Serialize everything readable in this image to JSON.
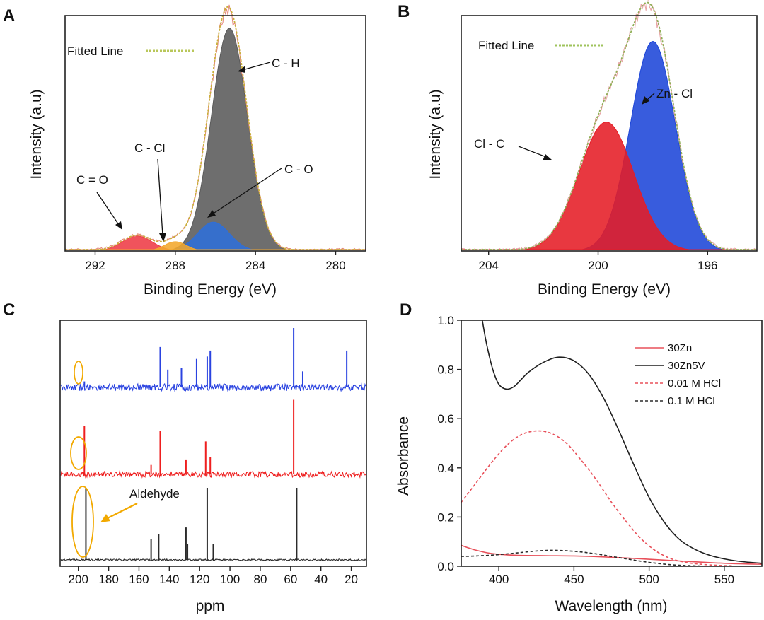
{
  "figure": {
    "panels": [
      "A",
      "B",
      "C",
      "D"
    ]
  },
  "chart_data": [
    {
      "panel": "A",
      "type": "line",
      "title": "",
      "xlabel": "Binding Energy (eV)",
      "ylabel": "Intensity (a.u)",
      "xlim": [
        293.5,
        278.5
      ],
      "xticks": [
        292,
        288,
        284,
        280
      ],
      "xtick_labels": [
        "292",
        "288",
        "284",
        "280"
      ],
      "ylim": [
        0,
        1.02
      ],
      "peaks": [
        {
          "name": "C = O",
          "center": 289.9,
          "sigma": 0.75,
          "height": 0.065,
          "color": "#ee3b46"
        },
        {
          "name": "C - Cl",
          "center": 288.0,
          "sigma": 0.55,
          "height": 0.04,
          "color": "#f3a72c"
        },
        {
          "name": "C - O",
          "center": 286.1,
          "sigma": 0.8,
          "height": 0.125,
          "color": "#2f6fd9"
        },
        {
          "name": "C - H",
          "center": 285.3,
          "sigma": 0.9,
          "height": 0.965,
          "color": "#5a5a5a"
        }
      ],
      "fitted_line_label": "Fitted Line",
      "annotations": [
        "C - H",
        "C - Cl",
        "C - O",
        "C = O"
      ]
    },
    {
      "panel": "B",
      "type": "line",
      "title": "",
      "xlabel": "Binding Energy (eV)",
      "ylabel": "Intensity (a.u)",
      "xlim": [
        205,
        194.2
      ],
      "xticks": [
        204,
        200,
        196
      ],
      "xtick_labels": [
        "204",
        "200",
        "196"
      ],
      "ylim": [
        0,
        1.05
      ],
      "peaks": [
        {
          "name": "Cl - C",
          "center": 199.7,
          "sigma": 1.0,
          "height": 0.575,
          "color": "#e51d26"
        },
        {
          "name": "Zn - Cl",
          "center": 198.0,
          "sigma": 0.82,
          "height": 0.935,
          "color": "#1d46d8"
        }
      ],
      "fitted_line_label": "Fitted Line",
      "annotations": [
        "Zn - Cl",
        "Cl - C"
      ]
    },
    {
      "panel": "C",
      "type": "line",
      "title": "",
      "xlabel": "ppm",
      "ylabel": "",
      "xlim": [
        212,
        10
      ],
      "xticks": [
        200,
        180,
        160,
        140,
        120,
        100,
        80,
        60,
        40,
        20
      ],
      "xtick_labels": [
        "200",
        "180",
        "160",
        "140",
        "120",
        "100",
        "80",
        "60",
        "40",
        "20"
      ],
      "series": [
        {
          "name": "blue spectrum",
          "color": "#2a43e0",
          "peaks": [
            [
              196,
              0.1
            ],
            [
              146,
              0.68
            ],
            [
              141,
              0.3
            ],
            [
              132,
              0.33
            ],
            [
              122,
              0.48
            ],
            [
              115,
              0.52
            ],
            [
              113,
              0.62
            ],
            [
              58,
              1.0
            ],
            [
              52,
              0.27
            ],
            [
              23,
              0.62
            ]
          ]
        },
        {
          "name": "red spectrum",
          "color": "#ee1f1f",
          "peaks": [
            [
              196,
              0.62
            ],
            [
              152,
              0.12
            ],
            [
              146,
              0.55
            ],
            [
              129,
              0.19
            ],
            [
              116,
              0.42
            ],
            [
              113,
              0.22
            ],
            [
              58,
              0.95
            ]
          ]
        },
        {
          "name": "black spectrum",
          "color": "#2b2b2b",
          "peaks": [
            [
              195,
              1.0
            ],
            [
              152,
              0.29
            ],
            [
              147,
              0.36
            ],
            [
              129,
              0.45
            ],
            [
              128,
              0.22
            ],
            [
              115,
              1.0
            ],
            [
              111,
              0.22
            ],
            [
              56,
              1.0
            ]
          ]
        }
      ],
      "annotation": "Aldehyde"
    },
    {
      "panel": "D",
      "type": "line",
      "title": "",
      "xlabel": "Wavelength (nm)",
      "ylabel": "Absorbance",
      "xlim": [
        375,
        575
      ],
      "ylim": [
        0,
        1.0
      ],
      "xticks": [
        400,
        450,
        500,
        550
      ],
      "xtick_labels": [
        "400",
        "450",
        "500",
        "550"
      ],
      "yticks": [
        0,
        0.2,
        0.4,
        0.6,
        0.8,
        1.0
      ],
      "ytick_labels": [
        "0.0",
        "0.2",
        "0.4",
        "0.6",
        "0.8",
        "1.0"
      ],
      "series": [
        {
          "name": "30Zn",
          "color": "#e8505a",
          "dash": "solid",
          "x": [
            375,
            385,
            395,
            410,
            430,
            450,
            470,
            490,
            510,
            530,
            550,
            575
          ],
          "y": [
            0.085,
            0.065,
            0.052,
            0.045,
            0.043,
            0.042,
            0.038,
            0.032,
            0.025,
            0.018,
            0.012,
            0.008
          ]
        },
        {
          "name": "30Zn5V",
          "color": "#1e1e1e",
          "dash": "solid",
          "x": [
            389,
            392,
            396,
            400,
            405,
            410,
            415,
            420,
            430,
            440,
            450,
            460,
            470,
            480,
            490,
            500,
            510,
            520,
            530,
            540,
            550,
            560,
            575
          ],
          "y": [
            1.0,
            0.9,
            0.8,
            0.74,
            0.72,
            0.73,
            0.76,
            0.79,
            0.83,
            0.85,
            0.835,
            0.78,
            0.68,
            0.55,
            0.41,
            0.28,
            0.18,
            0.11,
            0.07,
            0.045,
            0.03,
            0.02,
            0.012
          ]
        },
        {
          "name": "0.01 M HCl",
          "color": "#e8505a",
          "dash": "dashed",
          "x": [
            375,
            385,
            395,
            405,
            415,
            425,
            435,
            445,
            455,
            465,
            475,
            485,
            495,
            505,
            515,
            525,
            535,
            545,
            555
          ],
          "y": [
            0.26,
            0.34,
            0.42,
            0.49,
            0.535,
            0.55,
            0.54,
            0.5,
            0.43,
            0.35,
            0.26,
            0.18,
            0.11,
            0.06,
            0.03,
            0.015,
            0.008,
            0.004,
            0.002
          ]
        },
        {
          "name": "0.1 M HCl",
          "color": "#2b2b2b",
          "dash": "dashed",
          "x": [
            375,
            385,
            395,
            405,
            415,
            425,
            435,
            445,
            455,
            465,
            475,
            485,
            495,
            505,
            515,
            525,
            535
          ],
          "y": [
            0.04,
            0.042,
            0.045,
            0.05,
            0.056,
            0.062,
            0.065,
            0.063,
            0.058,
            0.05,
            0.04,
            0.03,
            0.02,
            0.012,
            0.006,
            0.003,
            0.001
          ]
        }
      ],
      "legend": [
        "30Zn",
        "30Zn5V",
        "0.01 M HCl",
        "0.1 M HCl"
      ],
      "legend_location": "top-right"
    }
  ]
}
